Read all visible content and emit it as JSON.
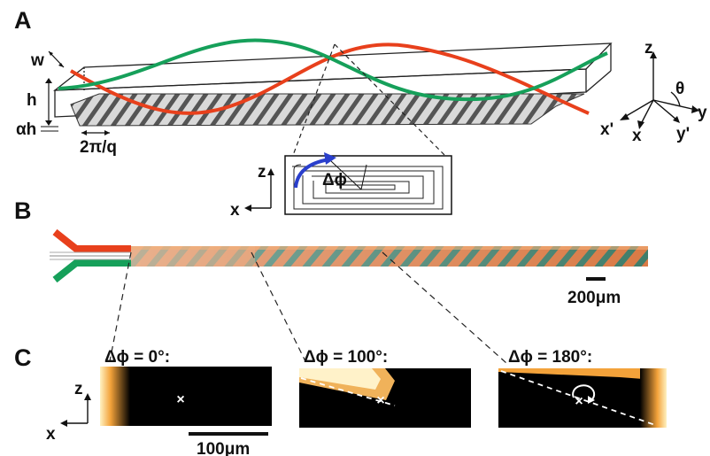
{
  "panels": {
    "a": "A",
    "b": "B",
    "c": "C"
  },
  "panel_a": {
    "dim_w": "w",
    "dim_h": "h",
    "dim_alpha_h": "αh",
    "dim_period": "2π/q",
    "inset_z": "z",
    "inset_x": "x",
    "inset_dphi": "Δϕ",
    "axes": {
      "z": "z",
      "y": "y",
      "x": "x",
      "x_prime": "x'",
      "y_prime": "y'",
      "theta": "θ"
    }
  },
  "panel_b": {
    "scale_label": "200μm"
  },
  "panel_c": {
    "titles": [
      "Δϕ = 0°:",
      "Δϕ = 100°:",
      "Δϕ = 180°:"
    ],
    "axis_z": "z",
    "axis_x": "x",
    "scale_label": "100μm",
    "marker": "×"
  },
  "colors": {
    "red": "#e8401c",
    "green": "#16a05a",
    "blue": "#2a3fcc",
    "channel_dark": "#000000",
    "fluor": "#ffd27a"
  }
}
